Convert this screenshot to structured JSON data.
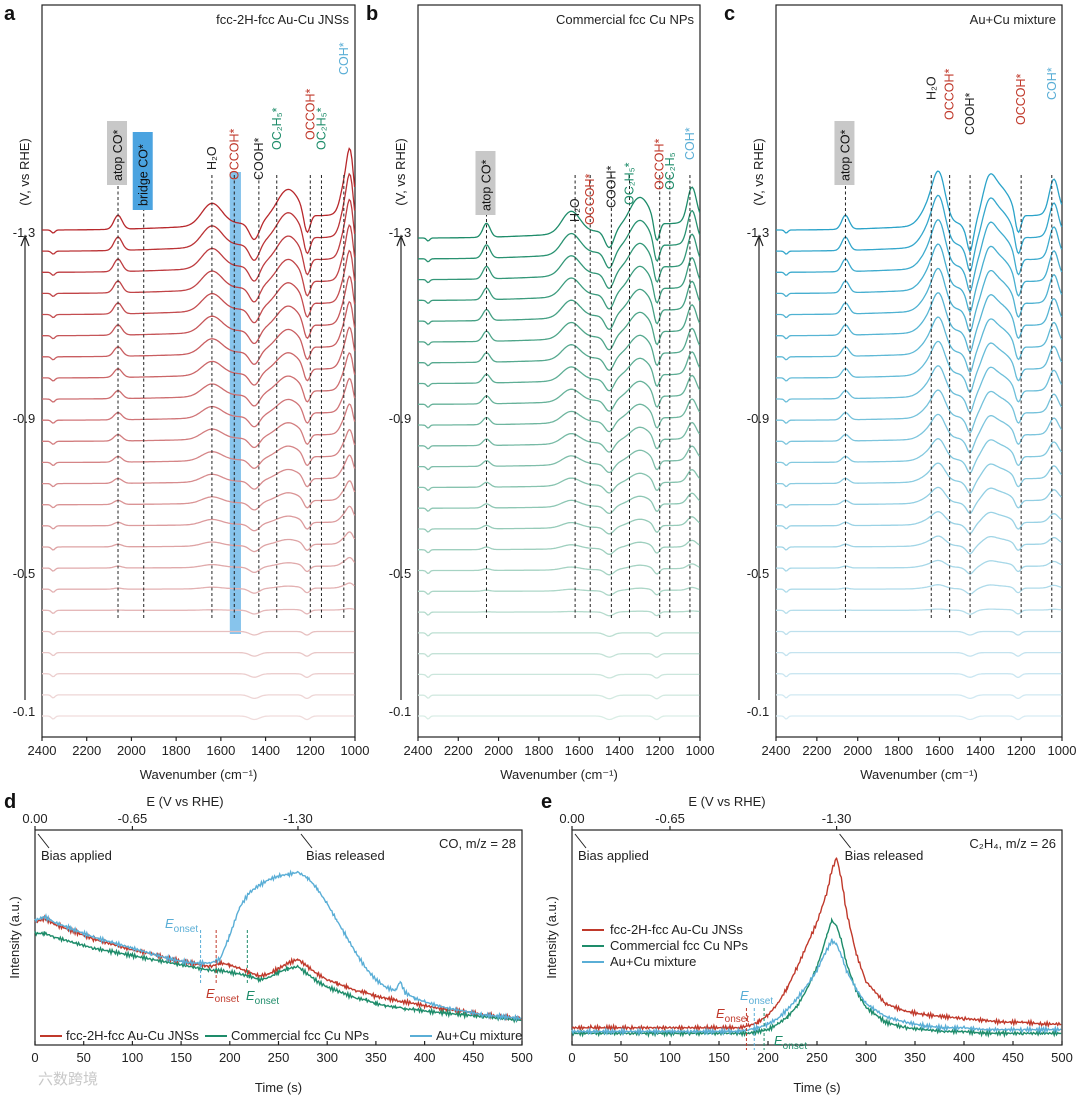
{
  "figure": {
    "watermark": "六数跨境"
  },
  "chart_data": [
    {
      "panel": "a",
      "type": "line",
      "title": "fcc-2H-fcc Au-Cu JNSs",
      "xlabel": "Wavenumber (cm⁻¹)",
      "ylabel": "(V, vs RHE)",
      "x_ticks": [
        "2400",
        "2200",
        "2000",
        "1800",
        "1600",
        "1400",
        "1200",
        "1000"
      ],
      "xlim": [
        2400,
        1000
      ],
      "y_ticks": [
        "-1.3",
        "-0.9",
        "-0.5",
        "-0.1"
      ],
      "series_count": 24,
      "color": "#b8282c",
      "peak_labels": [
        "atop CO*",
        "bridge CO*",
        "H₂O",
        "OCCOH*",
        "COOH*",
        "OC₂H₅*",
        "OCCOH*",
        "OC₂H₅*",
        "COH*"
      ],
      "peaks_cm1": [
        2060,
        1945,
        1640,
        1540,
        1430,
        1350,
        1200,
        1150,
        1050
      ]
    },
    {
      "panel": "b",
      "type": "line",
      "title": "Commercial fcc Cu NPs",
      "xlabel": "Wavenumber (cm⁻¹)",
      "ylabel": "(V, vs RHE)",
      "x_ticks": [
        "2400",
        "2200",
        "2000",
        "1800",
        "1600",
        "1400",
        "1200",
        "1000"
      ],
      "xlim": [
        2400,
        1000
      ],
      "y_ticks": [
        "-1.3",
        "-0.9",
        "-0.5",
        "-0.1"
      ],
      "series_count": 24,
      "color": "#1e8c6a",
      "peak_labels": [
        "atop CO*",
        "H₂O",
        "OCCOH*",
        "COOH*",
        "OC₂H₅*",
        "OCCOH*",
        "OC₂H₅",
        "COH*"
      ],
      "peaks_cm1": [
        2060,
        1620,
        1545,
        1440,
        1350,
        1200,
        1150,
        1050
      ]
    },
    {
      "panel": "c",
      "type": "line",
      "title": "Au+Cu mixture",
      "xlabel": "Wavenumber (cm⁻¹)",
      "ylabel": "(V, vs RHE)",
      "x_ticks": [
        "2400",
        "2200",
        "2000",
        "1800",
        "1600",
        "1400",
        "1200",
        "1000"
      ],
      "xlim": [
        2400,
        1000
      ],
      "y_ticks": [
        "-1.3",
        "-0.9",
        "-0.5",
        "-0.1"
      ],
      "series_count": 24,
      "color": "#2ba3c9",
      "peak_labels": [
        "atop CO*",
        "H₂O",
        "OCCOH*",
        "COOH*",
        "OCCOH*",
        "COH*"
      ],
      "peaks_cm1": [
        2060,
        1640,
        1550,
        1450,
        1200,
        1050
      ]
    },
    {
      "panel": "d",
      "type": "line",
      "label": "CO, m/z = 28",
      "xlabel": "Time (s)",
      "ylabel": "Intensity (a.u.)",
      "top_axis_label": "E (V vs RHE)",
      "top_ticks": [
        "0.00",
        "-0.65",
        "-1.30"
      ],
      "top_tick_times": [
        0,
        100,
        270
      ],
      "x_ticks": [
        "0",
        "50",
        "100",
        "150",
        "200",
        "250",
        "300",
        "350",
        "400",
        "450",
        "500"
      ],
      "xlim": [
        0,
        500
      ],
      "ylim": [
        0,
        1
      ],
      "notes": [
        "Bias applied",
        "Bias released"
      ],
      "onset_labels": [
        {
          "text": "E",
          "sub": "onset",
          "color": "#5aaed6",
          "t": 170
        },
        {
          "text": "E",
          "sub": "onset",
          "color": "#c0392b",
          "t": 186
        },
        {
          "text": "E",
          "sub": "onset",
          "color": "#1e8c6a",
          "t": 218
        }
      ],
      "x": [
        0,
        10,
        20,
        40,
        60,
        80,
        100,
        120,
        140,
        160,
        180,
        190,
        200,
        210,
        220,
        230,
        240,
        250,
        260,
        270,
        280,
        290,
        300,
        310,
        320,
        330,
        340,
        350,
        360,
        370,
        375,
        380,
        390,
        400,
        420,
        440,
        460,
        480,
        500
      ],
      "series": [
        {
          "name": "fcc-2H-fcc Au-Cu JNSs",
          "color": "#c0392b",
          "values": [
            0.62,
            0.64,
            0.61,
            0.57,
            0.53,
            0.5,
            0.47,
            0.45,
            0.42,
            0.4,
            0.38,
            0.4,
            0.39,
            0.37,
            0.35,
            0.33,
            0.34,
            0.37,
            0.4,
            0.42,
            0.38,
            0.34,
            0.31,
            0.29,
            0.27,
            0.25,
            0.24,
            0.22,
            0.21,
            0.2,
            0.19,
            0.19,
            0.18,
            0.17,
            0.15,
            0.14,
            0.12,
            0.11,
            0.1
          ]
        },
        {
          "name": "Commercial fcc Cu NPs",
          "color": "#1e8c6a",
          "values": [
            0.56,
            0.56,
            0.54,
            0.51,
            0.48,
            0.46,
            0.44,
            0.42,
            0.4,
            0.38,
            0.36,
            0.36,
            0.35,
            0.34,
            0.33,
            0.31,
            0.32,
            0.35,
            0.37,
            0.38,
            0.34,
            0.3,
            0.27,
            0.25,
            0.23,
            0.21,
            0.2,
            0.18,
            0.17,
            0.16,
            0.16,
            0.15,
            0.15,
            0.14,
            0.13,
            0.12,
            0.11,
            0.1,
            0.09
          ]
        },
        {
          "name": "Au+Cu mixture",
          "color": "#5aaed6",
          "values": [
            0.63,
            0.65,
            0.62,
            0.58,
            0.54,
            0.51,
            0.48,
            0.45,
            0.42,
            0.4,
            0.4,
            0.42,
            0.55,
            0.7,
            0.78,
            0.82,
            0.85,
            0.87,
            0.88,
            0.89,
            0.86,
            0.8,
            0.72,
            0.63,
            0.54,
            0.45,
            0.37,
            0.31,
            0.27,
            0.25,
            0.3,
            0.24,
            0.21,
            0.19,
            0.16,
            0.14,
            0.12,
            0.11,
            0.1
          ]
        }
      ]
    },
    {
      "panel": "e",
      "type": "line",
      "label": "C₂H₄, m/z = 26",
      "xlabel": "Time (s)",
      "ylabel": "Intensity (a.u.)",
      "top_axis_label": "E (V vs RHE)",
      "top_ticks": [
        "0.00",
        "-0.65",
        "-1.30"
      ],
      "top_tick_times": [
        0,
        100,
        270
      ],
      "x_ticks": [
        "0",
        "50",
        "100",
        "150",
        "200",
        "250",
        "300",
        "350",
        "400",
        "450",
        "500"
      ],
      "xlim": [
        0,
        500
      ],
      "ylim": [
        0,
        1
      ],
      "notes": [
        "Bias applied",
        "Bias released"
      ],
      "onset_labels": [
        {
          "text": "E",
          "sub": "onset",
          "color": "#5aaed6",
          "t": 186
        },
        {
          "text": "E",
          "sub": "onset",
          "color": "#c0392b",
          "t": 178
        },
        {
          "text": "E",
          "sub": "onset",
          "color": "#1e8c6a",
          "t": 196
        }
      ],
      "x": [
        0,
        20,
        40,
        60,
        80,
        100,
        120,
        140,
        160,
        170,
        180,
        190,
        200,
        210,
        220,
        230,
        240,
        250,
        255,
        260,
        265,
        270,
        275,
        280,
        290,
        300,
        320,
        340,
        360,
        380,
        400,
        420,
        440,
        460,
        480,
        500
      ],
      "series": [
        {
          "name": "fcc-2H-fcc Au-Cu JNSs",
          "color": "#c0392b",
          "values": [
            0.05,
            0.05,
            0.05,
            0.05,
            0.05,
            0.05,
            0.05,
            0.05,
            0.05,
            0.05,
            0.06,
            0.08,
            0.12,
            0.18,
            0.27,
            0.38,
            0.5,
            0.62,
            0.7,
            0.78,
            0.9,
            0.97,
            0.85,
            0.68,
            0.45,
            0.3,
            0.18,
            0.14,
            0.12,
            0.11,
            0.1,
            0.09,
            0.08,
            0.08,
            0.07,
            0.07
          ]
        },
        {
          "name": "Commercial fcc Cu NPs",
          "color": "#1e8c6a",
          "values": [
            0.02,
            0.02,
            0.02,
            0.02,
            0.02,
            0.02,
            0.02,
            0.02,
            0.02,
            0.02,
            0.02,
            0.03,
            0.04,
            0.07,
            0.11,
            0.17,
            0.26,
            0.38,
            0.46,
            0.55,
            0.63,
            0.6,
            0.52,
            0.4,
            0.25,
            0.16,
            0.08,
            0.05,
            0.04,
            0.03,
            0.03,
            0.02,
            0.02,
            0.02,
            0.02,
            0.02
          ]
        },
        {
          "name": "Au+Cu mixture",
          "color": "#5aaed6",
          "values": [
            0.03,
            0.03,
            0.03,
            0.03,
            0.03,
            0.03,
            0.03,
            0.03,
            0.03,
            0.03,
            0.04,
            0.05,
            0.07,
            0.1,
            0.15,
            0.21,
            0.28,
            0.36,
            0.42,
            0.47,
            0.52,
            0.5,
            0.44,
            0.36,
            0.26,
            0.18,
            0.11,
            0.08,
            0.06,
            0.05,
            0.05,
            0.04,
            0.04,
            0.04,
            0.04,
            0.04
          ]
        }
      ]
    }
  ]
}
